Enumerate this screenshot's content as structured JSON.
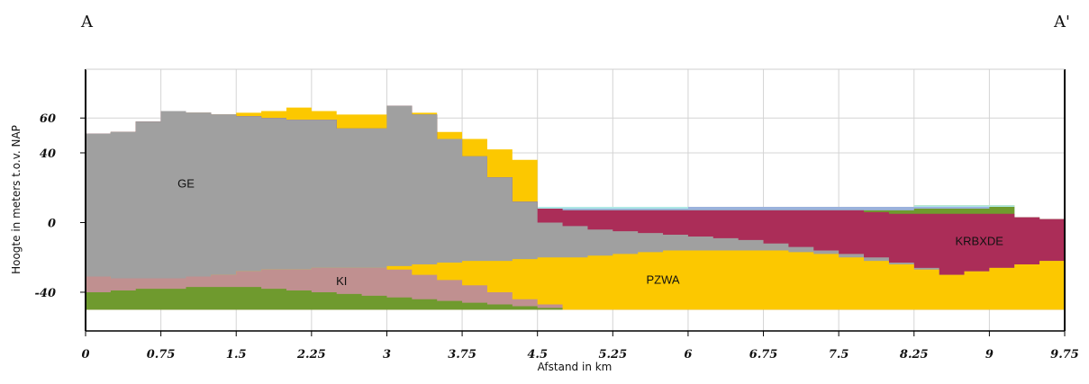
{
  "chart_data": {
    "type": "area",
    "title": "",
    "xlabel": "Afstand in km",
    "ylabel": "Hoogte in meters t.o.v. NAP",
    "xlim": [
      0,
      9.75
    ],
    "ylim": [
      -55,
      88
    ],
    "x_ticks": [
      "0",
      "0.75",
      "1.5",
      "2.25",
      "3",
      "3.75",
      "4.5",
      "5.25",
      "6",
      "6.75",
      "7.5",
      "8.25",
      "9",
      "9.75"
    ],
    "y_ticks": [
      "60",
      "40",
      "0",
      "-40"
    ],
    "grid": true,
    "section_start": "A",
    "section_end": "A'",
    "x": [
      0,
      0.25,
      0.5,
      0.75,
      1,
      1.25,
      1.5,
      1.75,
      2,
      2.25,
      2.5,
      2.75,
      3,
      3.25,
      3.5,
      3.75,
      4,
      4.25,
      4.5,
      4.75,
      5,
      5.25,
      5.5,
      5.75,
      6,
      6.25,
      6.5,
      6.75,
      7,
      7.25,
      7.5,
      7.75,
      8,
      8.25,
      8.5,
      8.75,
      9,
      9.25,
      9.5,
      9.75
    ],
    "series": [
      {
        "color": "#6f9a2e",
        "values": [
          -40,
          -39,
          -38,
          -38,
          -37,
          -37,
          -37,
          -38,
          -39,
          -40,
          -41,
          -42,
          -43,
          -44,
          -45,
          -46,
          -47,
          -48,
          -49,
          -50,
          -50,
          -50,
          -50,
          -50,
          -50,
          -50,
          -50,
          -50,
          -50,
          -50,
          -50,
          -50,
          -50,
          -50,
          -50,
          -50,
          -50,
          -50,
          -50,
          -50
        ]
      },
      {
        "color": "#c09090",
        "values": [
          -31,
          -32,
          -32,
          -32,
          -31,
          -30,
          -28,
          -27,
          -27,
          -26,
          -26,
          -26,
          -27,
          -30,
          -33,
          -36,
          -40,
          -44,
          -47,
          -50,
          -50,
          -50,
          -50,
          -50,
          -50,
          -50,
          -50,
          -50,
          -50,
          -50,
          -50,
          -50,
          -50,
          -50,
          -50,
          -50,
          -50,
          -50,
          -50,
          -50
        ]
      },
      {
        "label": "PZWA",
        "color": "#fcc800",
        "values": [
          -31,
          -32,
          -32,
          -32,
          -31,
          -30,
          -28,
          -27,
          -27,
          -26,
          -26,
          -26,
          -25,
          -24,
          -23,
          -22,
          -22,
          -21,
          -20,
          -20,
          -19,
          -18,
          -17,
          -16,
          -16,
          -16,
          -16,
          -16,
          -17,
          -18,
          -20,
          -22,
          -24,
          -27,
          -30,
          -28,
          -26,
          -24,
          -22,
          -21
        ]
      },
      {
        "label": "GE",
        "color": "#a0a0a0",
        "values": [
          51,
          52,
          58,
          64,
          63,
          62,
          61,
          60,
          59,
          59,
          54,
          54,
          67,
          62,
          48,
          38,
          26,
          12,
          0,
          -2,
          -4,
          -5,
          -6,
          -7,
          -8,
          -9,
          -10,
          -12,
          -14,
          -16,
          -18,
          -20,
          -23,
          -26,
          -30,
          -28,
          -26,
          -24,
          -22,
          -21
        ]
      },
      {
        "label": "KRBXDE",
        "color": "#ab2d58",
        "values": [
          51,
          52,
          58,
          64,
          63,
          62,
          61,
          60,
          59,
          59,
          54,
          54,
          67,
          62,
          48,
          38,
          26,
          12,
          8,
          7,
          7,
          7,
          7,
          7,
          7,
          7,
          7,
          7,
          7,
          7,
          7,
          6,
          5,
          5,
          5,
          5,
          5,
          3,
          2,
          4
        ]
      },
      {
        "color": "#6f9a2e",
        "values": [
          51,
          52,
          58,
          64,
          63,
          62,
          61,
          60,
          59,
          59,
          54,
          54,
          67,
          62,
          48,
          38,
          26,
          12,
          8,
          7,
          7,
          7,
          7,
          7,
          7,
          7,
          7,
          7,
          7,
          7,
          7,
          7,
          7,
          8,
          8,
          8,
          9,
          3,
          2,
          9
        ]
      },
      {
        "color": "#9bb2dc",
        "values": [
          51,
          52,
          58,
          64,
          63,
          62,
          61,
          60,
          59,
          59,
          54,
          54,
          67,
          62,
          48,
          38,
          26,
          12,
          8,
          8,
          8,
          8,
          8,
          8,
          9,
          9,
          9,
          9,
          9,
          9,
          9,
          9,
          9,
          9,
          9,
          9,
          9,
          3,
          2,
          10
        ]
      },
      {
        "color": "#aee8e6",
        "values": [
          51,
          52,
          58,
          64,
          63,
          62,
          61,
          60,
          59,
          59,
          54,
          54,
          67,
          62,
          48,
          38,
          26,
          12,
          9,
          9,
          9,
          9,
          9,
          9,
          9,
          9,
          9,
          9,
          9,
          9,
          9,
          9,
          9,
          10,
          10,
          10,
          10,
          3,
          2,
          11
        ]
      },
      {
        "color": "#fcc800",
        "values": [
          51,
          52,
          58,
          64,
          63,
          62,
          63,
          64,
          66,
          64,
          62,
          62,
          67,
          63,
          52,
          48,
          42,
          36,
          9,
          9,
          9,
          9,
          9,
          9,
          9,
          9,
          9,
          9,
          9,
          9,
          9,
          9,
          9,
          10,
          10,
          10,
          10,
          3,
          2,
          11
        ]
      }
    ],
    "region_labels": [
      {
        "text": "GE",
        "x": 1.0,
        "y": 20
      },
      {
        "text": "KI",
        "x": 2.55,
        "y": -36
      },
      {
        "text": "PZWA",
        "x": 5.75,
        "y": -35
      },
      {
        "text": "KRBXDE",
        "x": 8.9,
        "y": -13
      }
    ]
  }
}
